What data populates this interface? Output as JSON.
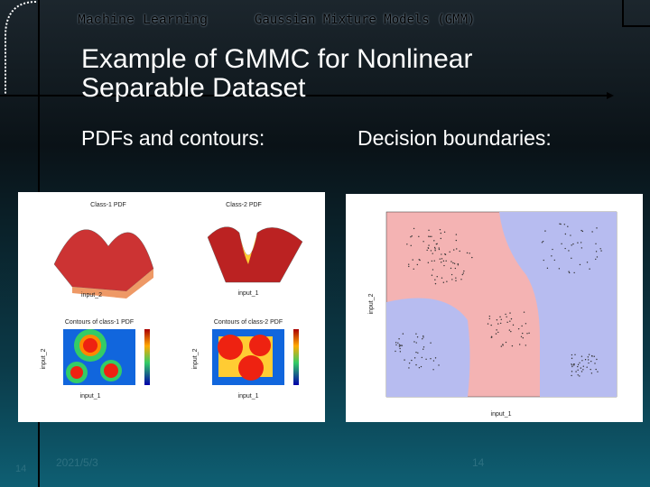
{
  "header": {
    "course": "Machine Learning",
    "topic": "Gaussian Mixture Models (GMM)"
  },
  "title": "Example of GMMC for Nonlinear Separable Dataset",
  "left_panel": {
    "heading": "PDFs and contours:",
    "plots": [
      {
        "title": "Class-1 PDF"
      },
      {
        "title": "Class-2 PDF"
      },
      {
        "title": "Contours of class-1 PDF"
      },
      {
        "title": "Contours of class-2 PDF"
      }
    ],
    "x_label": "input_1",
    "y_label": "input_2"
  },
  "right_panel": {
    "heading": "Decision boundaries:",
    "x_label": "input_1",
    "y_label": "input_2"
  },
  "footer": {
    "page_left": "14",
    "date": "2021/5/3",
    "page_center": "14"
  }
}
